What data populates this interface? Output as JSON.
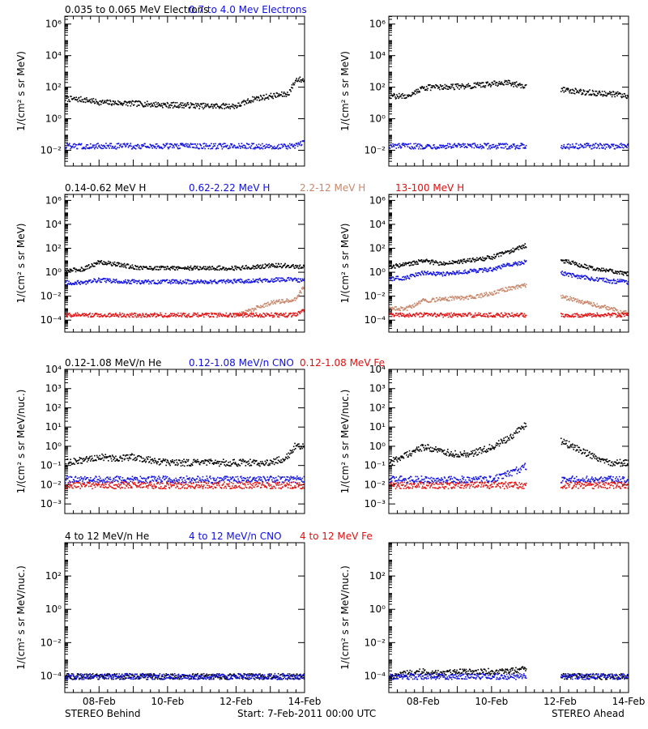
{
  "footer": {
    "left": "STEREO Behind",
    "center": "Start:  7-Feb-2011 00:00 UTC",
    "right": "STEREO Ahead"
  },
  "x_ticks": [
    "08-Feb",
    "10-Feb",
    "12-Feb",
    "14-Feb"
  ],
  "chart_data": [
    {
      "type": "scatter",
      "row": "electrons",
      "legend": [
        {
          "label": "0.035 to 0.065 MeV Electrons",
          "color": "#000000"
        },
        {
          "label": "0.7 to 4.0 Mev Electrons",
          "color": "#1010e0"
        }
      ],
      "ylabel": "1/(cm² s sr MeV)",
      "yscale": "log",
      "ylim_exp": [
        -3,
        6.5
      ],
      "y_ticks": [
        {
          "exp": -2,
          "label": "10⁻²"
        },
        {
          "exp": 0,
          "label": "10⁰"
        },
        {
          "exp": 2,
          "label": "10²"
        },
        {
          "exp": 4,
          "label": "10⁴"
        },
        {
          "exp": 6,
          "label": "10⁶"
        }
      ],
      "xlim_days": [
        0,
        7
      ],
      "x": [
        0.0,
        0.5,
        1.0,
        1.5,
        2.0,
        2.5,
        3.0,
        3.5,
        4.0,
        4.5,
        5.0,
        5.5,
        6.0,
        6.5,
        6.75,
        7.0
      ],
      "behind": [
        {
          "name": "0.035 to 0.065 MeV Electrons",
          "color": "#000000",
          "values": [
            20,
            18,
            12,
            11,
            10,
            9,
            8,
            8,
            7,
            7,
            7,
            20,
            30,
            40,
            350,
            300
          ]
        },
        {
          "name": "0.7 to 4.0 Mev Electrons",
          "color": "#1010e0",
          "values": [
            0.02,
            0.02,
            0.02,
            0.02,
            0.02,
            0.02,
            0.02,
            0.02,
            0.02,
            0.02,
            0.02,
            0.02,
            0.02,
            0.02,
            0.02,
            0.04
          ]
        }
      ],
      "ahead": [
        {
          "name": "0.035 to 0.065 MeV Electrons",
          "color": "#000000",
          "values": [
            30,
            30,
            100,
            110,
            120,
            140,
            180,
            200,
            120,
            null,
            80,
            60,
            45,
            40,
            35,
            30
          ]
        },
        {
          "name": "0.7 to 4.0 Mev Electrons",
          "color": "#1010e0",
          "values": [
            0.02,
            0.02,
            0.02,
            0.02,
            0.02,
            0.02,
            0.02,
            0.02,
            0.02,
            null,
            0.02,
            0.02,
            0.02,
            0.02,
            0.02,
            0.02
          ]
        }
      ]
    },
    {
      "type": "scatter",
      "row": "protons",
      "legend": [
        {
          "label": "0.14-0.62 MeV H",
          "color": "#000000"
        },
        {
          "label": "0.62-2.22 MeV H",
          "color": "#1010e0"
        },
        {
          "label": "2.2-12 MeV H",
          "color": "#c8876a"
        },
        {
          "label": "13-100 MeV H",
          "color": "#e01010"
        }
      ],
      "ylabel": "1/(cm² s sr MeV)",
      "yscale": "log",
      "ylim_exp": [
        -5,
        6.5
      ],
      "y_ticks": [
        {
          "exp": -4,
          "label": "10⁻⁴"
        },
        {
          "exp": -2,
          "label": "10⁻²"
        },
        {
          "exp": 0,
          "label": "10⁰"
        },
        {
          "exp": 2,
          "label": "10²"
        },
        {
          "exp": 4,
          "label": "10⁴"
        },
        {
          "exp": 6,
          "label": "10⁶"
        }
      ],
      "xlim_days": [
        0,
        7
      ],
      "x": [
        0.0,
        0.5,
        1.0,
        1.5,
        2.0,
        2.5,
        3.0,
        3.5,
        4.0,
        4.5,
        5.0,
        5.5,
        6.0,
        6.5,
        6.75,
        7.0
      ],
      "behind": [
        {
          "name": "0.14-0.62 MeV H",
          "color": "#000000",
          "values": [
            1.5,
            2,
            8,
            5,
            3,
            2.5,
            2.5,
            2.5,
            2.5,
            2.5,
            2.5,
            3,
            4,
            4,
            3,
            3
          ]
        },
        {
          "name": "0.62-2.22 MeV H",
          "color": "#1010e0",
          "values": [
            0.15,
            0.15,
            0.25,
            0.2,
            0.18,
            0.17,
            0.18,
            0.18,
            0.18,
            0.18,
            0.2,
            0.22,
            0.25,
            0.3,
            0.25,
            0.25
          ]
        },
        {
          "name": "2.2-12 MeV H",
          "color": "#c8876a",
          "values": [
            null,
            null,
            null,
            null,
            null,
            null,
            null,
            null,
            null,
            null,
            0.0003,
            0.001,
            0.003,
            0.005,
            0.008,
            0.1
          ]
        },
        {
          "name": "13-100 MeV H",
          "color": "#e01010",
          "values": [
            0.0003,
            0.0003,
            0.0003,
            0.0003,
            0.0003,
            0.0003,
            0.0003,
            0.0003,
            0.0003,
            0.0003,
            0.0003,
            0.0003,
            0.0003,
            0.0003,
            0.0003,
            0.001
          ]
        }
      ],
      "ahead": [
        {
          "name": "0.14-0.62 MeV H",
          "color": "#000000",
          "values": [
            3,
            5,
            10,
            6,
            8,
            12,
            20,
            60,
            200,
            null,
            12,
            5,
            2,
            1.5,
            1,
            0.8
          ]
        },
        {
          "name": "0.62-2.22 MeV H",
          "color": "#1010e0",
          "values": [
            0.3,
            0.4,
            1,
            0.8,
            1,
            1.5,
            2,
            5,
            8,
            null,
            1,
            0.5,
            0.3,
            0.2,
            0.2,
            0.15
          ]
        },
        {
          "name": "2.2-12 MeV H",
          "color": "#c8876a",
          "values": [
            0.001,
            0.001,
            0.005,
            0.006,
            0.008,
            0.01,
            0.02,
            0.05,
            0.1,
            null,
            0.01,
            0.005,
            0.002,
            0.001,
            0.0005,
            0.0005
          ]
        },
        {
          "name": "13-100 MeV H",
          "color": "#e01010",
          "values": [
            0.0003,
            0.0003,
            0.0003,
            0.0003,
            0.0003,
            0.0003,
            0.0003,
            0.0003,
            0.0003,
            null,
            0.0003,
            0.0003,
            0.0003,
            0.0003,
            0.0003,
            0.0003
          ]
        }
      ]
    },
    {
      "type": "scatter",
      "row": "heavy-ions-low",
      "legend": [
        {
          "label": "0.12-1.08 MeV/n He",
          "color": "#000000"
        },
        {
          "label": "0.12-1.08 MeV/n CNO",
          "color": "#1010e0"
        },
        {
          "label": "0.12-1.08 MeV Fe",
          "color": "#e01010"
        }
      ],
      "ylabel": "1/(cm² s sr MeV/nuc.)",
      "yscale": "log",
      "ylim_exp": [
        -3.5,
        4
      ],
      "y_ticks": [
        {
          "exp": -3,
          "label": "10⁻³"
        },
        {
          "exp": -2,
          "label": "10⁻²"
        },
        {
          "exp": -1,
          "label": "10⁻¹"
        },
        {
          "exp": 0,
          "label": "10⁰"
        },
        {
          "exp": 1,
          "label": "10¹"
        },
        {
          "exp": 2,
          "label": "10²"
        },
        {
          "exp": 3,
          "label": "10³"
        },
        {
          "exp": 4,
          "label": "10⁴"
        }
      ],
      "xlim_days": [
        0,
        7
      ],
      "x": [
        0.0,
        0.5,
        1.0,
        1.5,
        2.0,
        2.5,
        3.0,
        3.5,
        4.0,
        4.5,
        5.0,
        5.5,
        6.0,
        6.5,
        6.75,
        7.0
      ],
      "behind": [
        {
          "name": "0.12-1.08 MeV/n He",
          "color": "#000000",
          "values": [
            0.15,
            0.2,
            0.3,
            0.25,
            0.3,
            0.2,
            0.15,
            0.15,
            0.15,
            0.15,
            0.15,
            0.15,
            0.15,
            0.3,
            1.5,
            0.8
          ]
        },
        {
          "name": "0.12-1.08 MeV/n CNO",
          "color": "#1010e0",
          "values": [
            0.02,
            0.02,
            0.02,
            0.02,
            0.02,
            0.02,
            0.02,
            0.02,
            0.02,
            0.02,
            0.02,
            0.02,
            0.02,
            0.02,
            0.02,
            0.02
          ]
        },
        {
          "name": "0.12-1.08 MeV Fe",
          "color": "#e01010",
          "values": [
            0.01,
            0.01,
            0.01,
            0.01,
            0.01,
            0.01,
            0.01,
            0.01,
            0.01,
            0.01,
            0.01,
            0.01,
            0.01,
            0.01,
            0.01,
            0.01
          ]
        }
      ],
      "ahead": [
        {
          "name": "0.12-1.08 MeV/n He",
          "color": "#000000",
          "values": [
            0.15,
            0.4,
            1.0,
            0.6,
            0.4,
            0.5,
            1.0,
            3,
            15,
            null,
            2,
            0.8,
            0.3,
            0.15,
            0.15,
            0.15
          ]
        },
        {
          "name": "0.12-1.08 MeV/n CNO",
          "color": "#1010e0",
          "values": [
            0.02,
            0.02,
            0.02,
            0.02,
            0.02,
            0.02,
            0.02,
            0.04,
            0.1,
            null,
            0.02,
            0.02,
            0.02,
            0.02,
            0.02,
            0.02
          ]
        },
        {
          "name": "0.12-1.08 MeV Fe",
          "color": "#e01010",
          "values": [
            0.01,
            0.01,
            0.01,
            0.01,
            0.01,
            0.01,
            0.01,
            0.01,
            0.01,
            null,
            0.01,
            0.01,
            0.01,
            0.01,
            0.01,
            0.01
          ]
        }
      ]
    },
    {
      "type": "scatter",
      "row": "heavy-ions-high",
      "legend": [
        {
          "label": "4 to 12 MeV/n He",
          "color": "#000000"
        },
        {
          "label": "4 to 12 MeV/n CNO",
          "color": "#1010e0"
        },
        {
          "label": "4 to 12 MeV Fe",
          "color": "#e01010"
        }
      ],
      "ylabel": "1/(cm² s sr MeV/nuc.)",
      "yscale": "log",
      "ylim_exp": [
        -5,
        4
      ],
      "y_ticks": [
        {
          "exp": -4,
          "label": "10⁻⁴"
        },
        {
          "exp": -2,
          "label": "10⁻²"
        },
        {
          "exp": 0,
          "label": "10⁰"
        },
        {
          "exp": 2,
          "label": "10²"
        }
      ],
      "xlim_days": [
        0,
        7
      ],
      "x": [
        0.0,
        0.5,
        1.0,
        1.5,
        2.0,
        2.5,
        3.0,
        3.5,
        4.0,
        4.5,
        5.0,
        5.5,
        6.0,
        6.5,
        6.75,
        7.0
      ],
      "behind": [
        {
          "name": "4 to 12 MeV/n He",
          "color": "#000000",
          "values": [
            0.0001,
            0.0001,
            0.0001,
            0.0001,
            0.0001,
            0.0001,
            0.0001,
            0.0001,
            0.0001,
            0.0001,
            0.0001,
            0.0001,
            0.0001,
            0.0001,
            0.0001,
            0.0001
          ]
        },
        {
          "name": "4 to 12 MeV/n CNO",
          "color": "#1010e0",
          "values": [
            0.0001,
            0.0001,
            0.0001,
            0.0001,
            0.0001,
            0.0001,
            0.0001,
            0.0001,
            0.0001,
            0.0001,
            0.0001,
            0.0001,
            0.0001,
            0.0001,
            0.0001,
            0.0001
          ]
        },
        {
          "name": "4 to 12 MeV Fe",
          "color": "#e01010",
          "values": [
            null,
            null,
            null,
            null,
            null,
            null,
            null,
            null,
            null,
            null,
            null,
            null,
            null,
            null,
            null,
            null
          ]
        }
      ],
      "ahead": [
        {
          "name": "4 to 12 MeV/n He",
          "color": "#000000",
          "values": [
            0.0001,
            0.00015,
            0.0002,
            0.00015,
            0.0002,
            0.0002,
            0.0002,
            0.0002,
            0.0003,
            null,
            0.0001,
            0.0001,
            0.0001,
            0.0001,
            0.0001,
            0.0001
          ]
        },
        {
          "name": "4 to 12 MeV/n CNO",
          "color": "#1010e0",
          "values": [
            0.0001,
            0.0001,
            0.0001,
            0.0001,
            0.0001,
            0.0001,
            0.0001,
            0.0001,
            0.0001,
            null,
            0.0001,
            0.0001,
            0.0001,
            0.0001,
            0.0001,
            0.0001
          ]
        },
        {
          "name": "4 to 12 MeV Fe",
          "color": "#e01010",
          "values": [
            null,
            null,
            null,
            null,
            null,
            null,
            null,
            null,
            null,
            null,
            null,
            null,
            null,
            null,
            null,
            null
          ]
        }
      ]
    }
  ]
}
